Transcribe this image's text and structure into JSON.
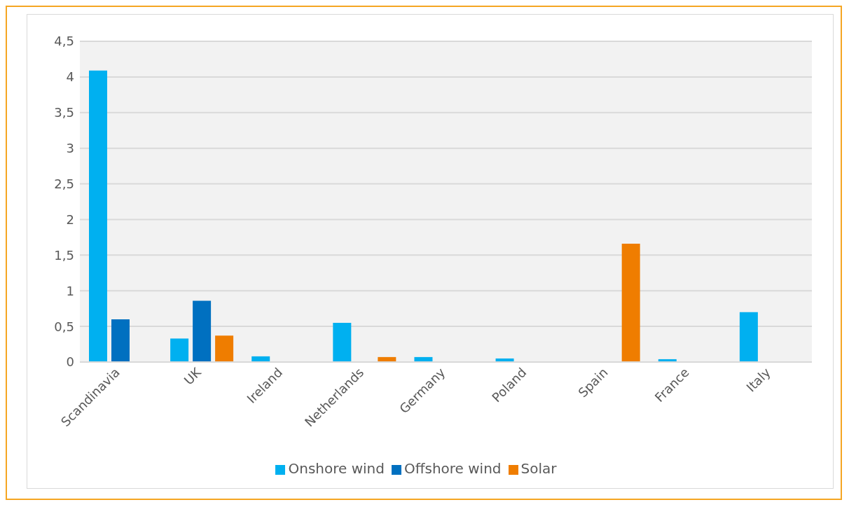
{
  "chart_data": {
    "type": "bar",
    "categories": [
      "Scandinavia",
      "UK",
      "Ireland",
      "Netherlands",
      "Germany",
      "Poland",
      "Spain",
      "France",
      "Italy"
    ],
    "series": [
      {
        "name": "Onshore wind",
        "color": "#00b0f0",
        "values": [
          4.09,
          0.33,
          0.08,
          0.55,
          0.07,
          0.05,
          null,
          0.04,
          0.7
        ]
      },
      {
        "name": "Offshore wind",
        "color": "#0070c0",
        "values": [
          0.6,
          0.86,
          null,
          null,
          null,
          null,
          null,
          null,
          null
        ]
      },
      {
        "name": "Solar",
        "color": "#ef7d00",
        "values": [
          null,
          0.37,
          null,
          0.07,
          null,
          null,
          1.66,
          null,
          null
        ]
      }
    ],
    "ylim": [
      0,
      4.5
    ],
    "yticks": [
      0,
      {
        "value": 0.5,
        "label": "0,5"
      },
      1,
      {
        "value": 1.5,
        "label": "1,5"
      },
      2,
      {
        "value": 2.5,
        "label": "2,5"
      },
      3,
      {
        "value": 3.5,
        "label": "3,5"
      },
      4,
      {
        "value": 4.5,
        "label": "4,5"
      }
    ],
    "grid": "y",
    "legend": "bottom"
  }
}
